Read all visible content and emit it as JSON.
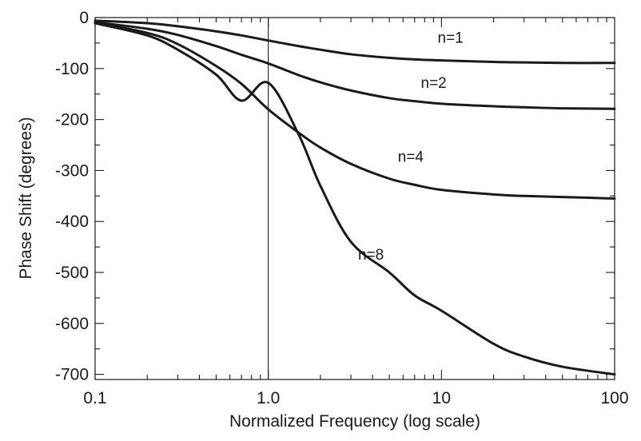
{
  "chart_data": {
    "type": "line",
    "title": "",
    "xlabel": "Normalized Frequency (log scale)",
    "ylabel": "Phase Shift (degrees)",
    "x_scale": "log",
    "xlim": [
      0.1,
      100
    ],
    "ylim": [
      -710,
      0
    ],
    "x_tick_labels": [
      "0.1",
      "1.0",
      "10",
      "100"
    ],
    "y_tick_labels": [
      "0",
      "-100",
      "-200",
      "-300",
      "-400",
      "-500",
      "-600",
      "-700"
    ],
    "reference_line_x": 1.0,
    "grid": false,
    "line_color": "#1a1a1a",
    "x": [
      0.1,
      0.2,
      0.3,
      0.5,
      0.7,
      1.0,
      1.5,
      2,
      3,
      5,
      7,
      10,
      20,
      30,
      50,
      100
    ],
    "series": [
      {
        "name": "n=1",
        "values": [
          -6,
          -11,
          -17,
          -27,
          -35,
          -45,
          -56,
          -63,
          -72,
          -79,
          -82,
          -84,
          -87,
          -88,
          -89,
          -89
        ]
      },
      {
        "name": "n=2",
        "values": [
          -9,
          -22,
          -34,
          -56,
          -73,
          -90,
          -113,
          -127,
          -143,
          -158,
          -164,
          -169,
          -174,
          -176,
          -178,
          -179
        ]
      },
      {
        "name": "n=4",
        "values": [
          -10,
          -30,
          -52,
          -95,
          -130,
          -180,
          -226,
          -255,
          -287,
          -316,
          -328,
          -338,
          -347,
          -350,
          -352,
          -355
        ]
      },
      {
        "name": "n=8",
        "values": [
          -11,
          -35,
          -63,
          -112,
          -163,
          -128,
          -230,
          -330,
          -440,
          -500,
          -545,
          -575,
          -640,
          -665,
          -685,
          -700
        ]
      }
    ]
  }
}
